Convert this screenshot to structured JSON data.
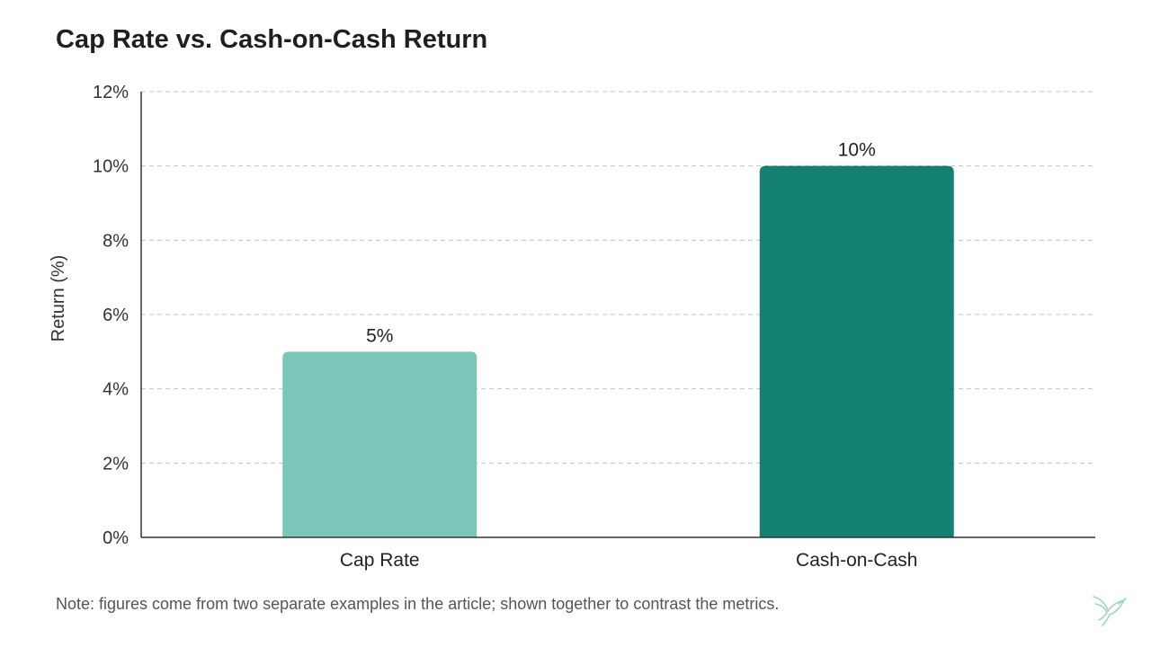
{
  "chart_data": {
    "type": "bar",
    "title": "Cap Rate vs. Cash-on-Cash Return",
    "xlabel": "",
    "ylabel": "Return (%)",
    "categories": [
      "Cap Rate",
      "Cash-on-Cash"
    ],
    "values": [
      5,
      10
    ],
    "data_labels": [
      "5%",
      "10%"
    ],
    "ylim": [
      0,
      12
    ],
    "yticks": [
      0,
      2,
      4,
      6,
      8,
      10,
      12
    ],
    "ytick_labels": [
      "0%",
      "2%",
      "4%",
      "6%",
      "8%",
      "10%",
      "12%"
    ],
    "grid": true,
    "legend": "none",
    "bar_colors": [
      "#7cc6b9",
      "#138073"
    ]
  },
  "note": "Note: figures come from two separate examples in the article; shown together to contrast the metrics.",
  "icons": {
    "logo": "hummingbird-logo-icon"
  }
}
